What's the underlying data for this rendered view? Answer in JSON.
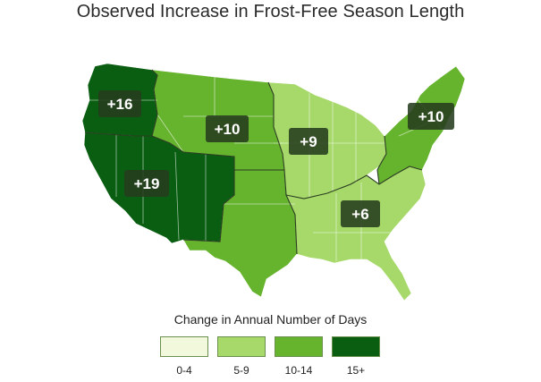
{
  "title": "Observed Increase in Frost-Free Season Length",
  "legend": {
    "title": "Change in Annual Number of Days",
    "items": [
      {
        "label": "0-4",
        "color": "#f1f8dc"
      },
      {
        "label": "5-9",
        "color": "#a6d96a"
      },
      {
        "label": "10-14",
        "color": "#66b32e"
      },
      {
        "label": "15+",
        "color": "#0a5e12"
      }
    ]
  },
  "regions": [
    {
      "name": "Northwest",
      "value": "+16",
      "category": "15+"
    },
    {
      "name": "Southwest",
      "value": "+19",
      "category": "15+"
    },
    {
      "name": "Great Plains North",
      "value": "+10",
      "category": "10-14"
    },
    {
      "name": "Great Plains South",
      "value": "",
      "category": "10-14"
    },
    {
      "name": "Midwest",
      "value": "+9",
      "category": "5-9"
    },
    {
      "name": "Northeast",
      "value": "+10",
      "category": "10-14"
    },
    {
      "name": "Southeast",
      "value": "+6",
      "category": "5-9"
    }
  ]
}
